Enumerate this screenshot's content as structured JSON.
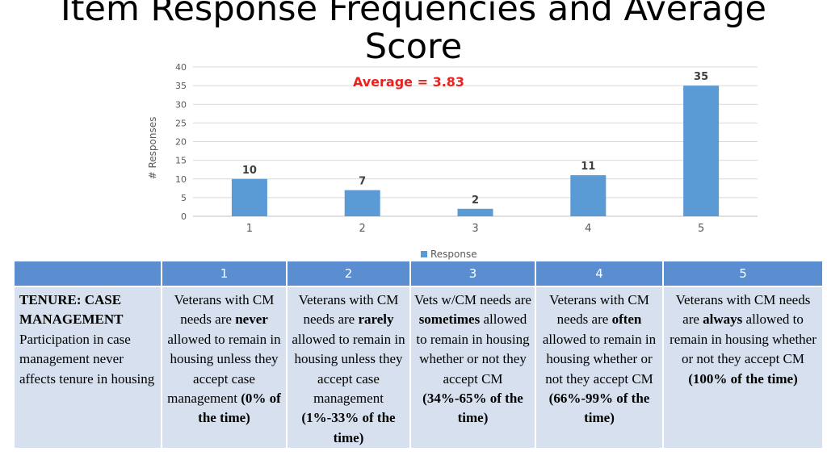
{
  "page_title": "Item Response Frequencies and Average Score",
  "chart_data": {
    "type": "bar",
    "categories": [
      "1",
      "2",
      "3",
      "4",
      "5"
    ],
    "values": [
      10,
      7,
      2,
      11,
      35
    ],
    "data_labels": [
      "10",
      "7",
      "2",
      "11",
      "35"
    ],
    "ylabel": "# Responses",
    "ylim": [
      0,
      40
    ],
    "yticks": [
      0,
      5,
      10,
      15,
      20,
      25,
      30,
      35,
      40
    ],
    "legend": [
      "Response"
    ],
    "legend_position": "bottom",
    "annotation": "Average = 3.83",
    "grid": true,
    "bar_color": "#5b9bd5",
    "annotation_color": "#e8231f"
  },
  "table": {
    "headers": [
      "",
      "1",
      "2",
      "3",
      "4",
      "5"
    ],
    "rows": [
      {
        "cells": [
          {
            "pre": "",
            "bold": "TENURE: CASE MANAGEMENT",
            "post": "Participation in case management never affects tenure in housing"
          },
          {
            "pre": "Veterans with CM needs are ",
            "bold": "never",
            "post": " allowed to remain in housing unless they accept case management ",
            "tag": "(0% of the time)"
          },
          {
            "pre": "Veterans with CM needs are ",
            "bold": "rarely",
            "post": " allowed to remain in housing unless they accept case management ",
            "tag": "(1%-33% of the time)"
          },
          {
            "pre": "Vets w/CM needs are ",
            "bold": "sometimes",
            "post": " allowed to remain in housing whether or not they accept CM ",
            "tag": "(34%-65% of the time)"
          },
          {
            "pre": "Veterans with CM needs are ",
            "bold": "often",
            "post": " allowed to remain in housing whether or not they accept CM ",
            "tag": "(66%-99% of the time)"
          },
          {
            "pre": "Veterans with CM needs are ",
            "bold": "always",
            "post": " allowed to remain in housing whether or not they accept CM ",
            "tag": "(100% of the time)"
          }
        ]
      }
    ]
  }
}
